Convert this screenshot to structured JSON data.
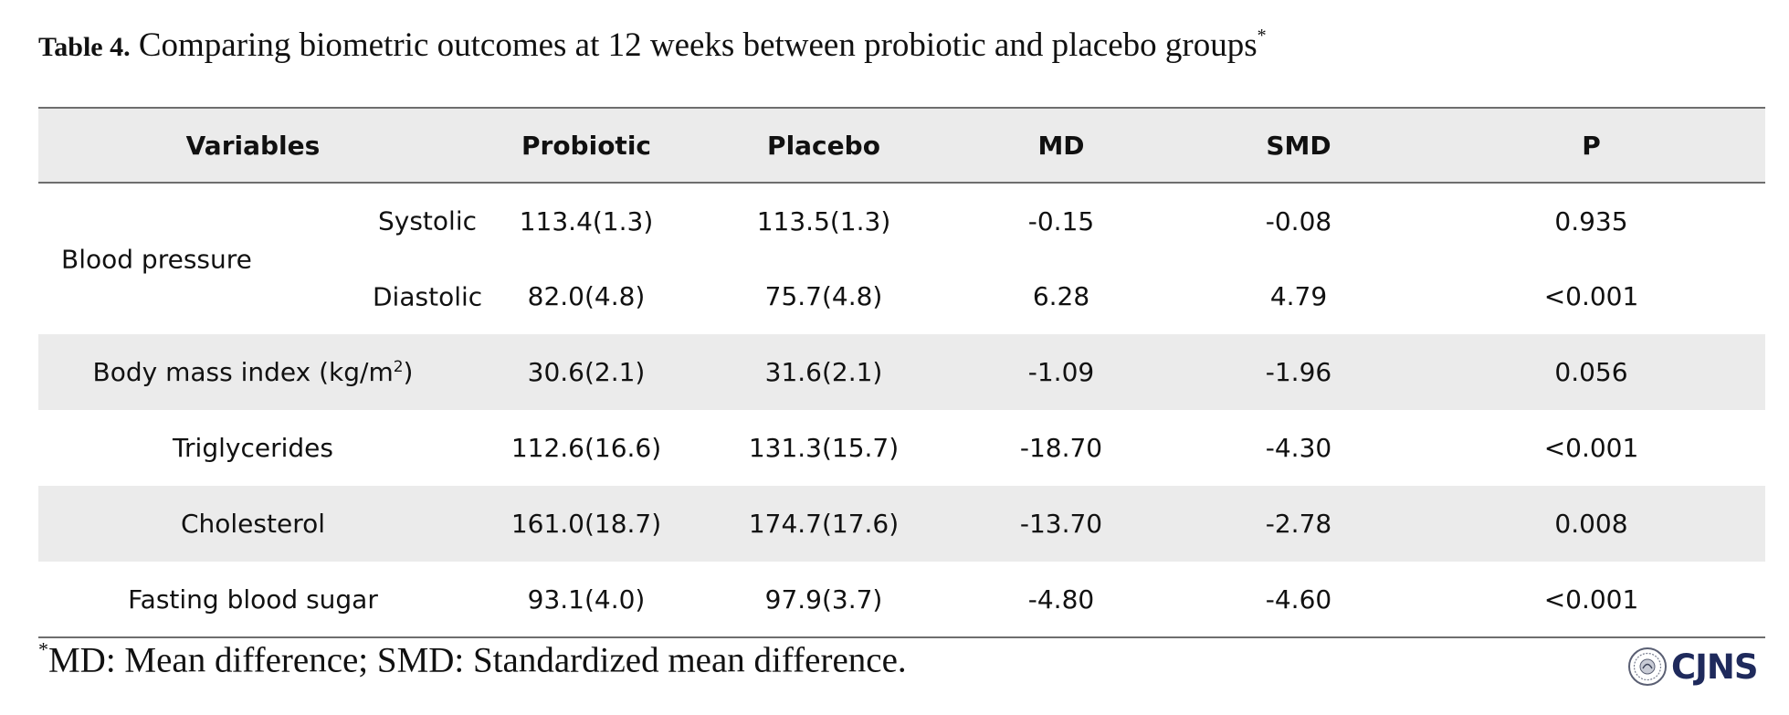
{
  "caption": {
    "label": "Table 4.",
    "text": "Comparing biometric outcomes at 12 weeks between probiotic and placebo groups",
    "marker": "*"
  },
  "table": {
    "headers": [
      "Variables",
      "Probiotic",
      "Placebo",
      "MD",
      "SMD",
      "P"
    ],
    "blood_pressure": {
      "label": "Blood pressure",
      "rows": [
        {
          "sub": "Systolic",
          "probiotic": "113.4(1.3)",
          "placebo": "113.5(1.3)",
          "md": "-0.15",
          "smd": "-0.08",
          "p": "0.935"
        },
        {
          "sub": "Diastolic",
          "probiotic": "82.0(4.8)",
          "placebo": "75.7(4.8)",
          "md": "6.28",
          "smd": "4.79",
          "p": "<0.001"
        }
      ]
    },
    "bmi": {
      "label": "Body mass index (kg/m",
      "sup": "2",
      "label_end": ")",
      "probiotic": "30.6(2.1)",
      "placebo": "31.6(2.1)",
      "md": "-1.09",
      "smd": "-1.96",
      "p": "0.056"
    },
    "rows": [
      {
        "label": "Triglycerides",
        "probiotic": "112.6(16.6)",
        "placebo": "131.3(15.7)",
        "md": "-18.70",
        "smd": "-4.30",
        "p": "<0.001"
      },
      {
        "label": "Cholesterol",
        "probiotic": "161.0(18.7)",
        "placebo": "174.7(17.6)",
        "md": "-13.70",
        "smd": "-2.78",
        "p": "0.008"
      },
      {
        "label": "Fasting blood sugar",
        "probiotic": "93.1(4.0)",
        "placebo": "97.9(3.7)",
        "md": "-4.80",
        "smd": "-4.60",
        "p": "<0.001"
      }
    ]
  },
  "footnote": {
    "marker": "*",
    "text": "MD: Mean difference; SMD: Standardized mean difference."
  },
  "logo": {
    "text": "CJNS",
    "icon": "journal-seal-icon",
    "color": "#1f2a5c"
  }
}
